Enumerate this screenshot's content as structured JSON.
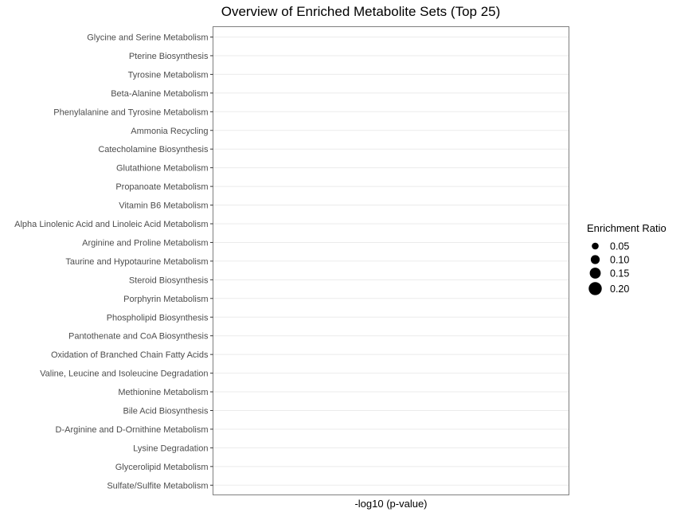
{
  "chart_data": {
    "type": "scatter",
    "title": "Overview of Enriched Metabolite Sets (Top 25)",
    "xlabel": "-log10 (p-value)",
    "ylabel": "",
    "categories": [
      "Glycine and Serine Metabolism",
      "Pterine Biosynthesis",
      "Tyrosine Metabolism",
      "Beta-Alanine Metabolism",
      "Phenylalanine and Tyrosine Metabolism",
      "Ammonia Recycling",
      "Catecholamine Biosynthesis",
      "Glutathione Metabolism",
      "Propanoate Metabolism",
      "Vitamin B6 Metabolism",
      "Alpha Linolenic Acid and Linoleic Acid Metabolism",
      "Arginine and Proline Metabolism",
      "Taurine and Hypotaurine Metabolism",
      "Steroid Biosynthesis",
      "Porphyrin Metabolism",
      "Phospholipid Biosynthesis",
      "Pantothenate and CoA Biosynthesis",
      "Oxidation of Branched Chain Fatty Acids",
      "Valine, Leucine and Isoleucine Degradation",
      "Methionine Metabolism",
      "Bile Acid Biosynthesis",
      "D-Arginine and D-Ornithine Metabolism",
      "Lysine Degradation",
      "Glycerolipid Metabolism",
      "Sulfate/Sulfite Metabolism"
    ],
    "points": [],
    "grid": true,
    "legend": {
      "title": "Enrichment Ratio",
      "position": "right",
      "entries": [
        {
          "label": "0.05",
          "value": 0.05
        },
        {
          "label": "0.10",
          "value": 0.1
        },
        {
          "label": "0.15",
          "value": 0.15
        },
        {
          "label": "0.20",
          "value": 0.2
        }
      ]
    }
  }
}
